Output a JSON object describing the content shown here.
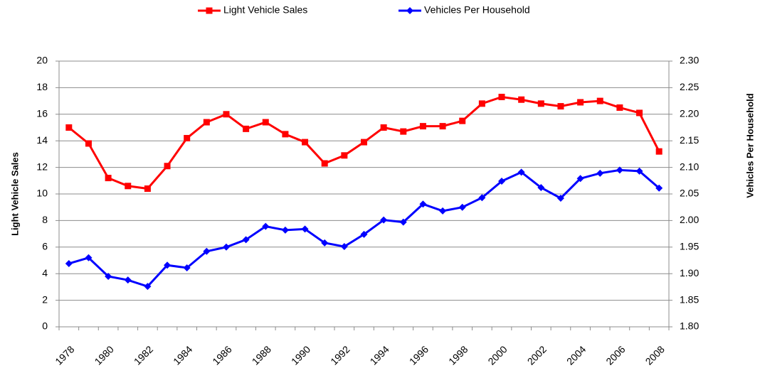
{
  "chart_data": {
    "type": "line",
    "categories": [
      "1978",
      null,
      "1980",
      null,
      "1982",
      null,
      "1984",
      null,
      "1986",
      null,
      "1988",
      null,
      "1990",
      null,
      "1992",
      null,
      "1994",
      null,
      "1996",
      null,
      "1998",
      null,
      "2000",
      null,
      "2002",
      null,
      "2004",
      null,
      "2006",
      null,
      "2008"
    ],
    "y_label": "Light Vehicle Sales",
    "y2_label": "Vehicles Per Household",
    "ylim": [
      0,
      20
    ],
    "yticks": [
      0,
      2,
      4,
      6,
      8,
      10,
      12,
      14,
      16,
      18,
      20
    ],
    "y2lim": [
      1.8,
      2.3
    ],
    "y2ticks": [
      {
        "value": 1.8,
        "label": "1.80"
      },
      1.85,
      {
        "value": 1.9,
        "label": "1.90"
      },
      1.95,
      {
        "value": 2.0,
        "label": "2.00"
      },
      2.05,
      {
        "value": 2.1,
        "label": "2.10"
      },
      2.15,
      {
        "value": 2.2,
        "label": "2.20"
      },
      2.25,
      {
        "value": 2.3,
        "label": "2.30"
      }
    ],
    "grid": true,
    "legend": "top",
    "series": [
      {
        "name": "Light Vehicle Sales",
        "color": "#ff0000",
        "marker": "square",
        "values": [
          15.0,
          13.8,
          11.2,
          10.6,
          10.4,
          12.1,
          14.2,
          15.4,
          16.0,
          14.9,
          15.4,
          14.5,
          13.9,
          12.3,
          12.9,
          13.9,
          15.0,
          14.7,
          15.1,
          15.1,
          15.5,
          16.8,
          17.3,
          17.1,
          16.8,
          16.6,
          16.9,
          17.0,
          16.5,
          16.1,
          13.2
        ]
      },
      {
        "name": "Vehicles Per Household",
        "color": "#0000ff",
        "marker": "diamond",
        "axis": "y2",
        "values": [
          1.919,
          1.93,
          1.895,
          1.888,
          1.876,
          1.916,
          1.911,
          1.942,
          1.95,
          1.964,
          1.989,
          1.982,
          1.984,
          1.958,
          1.951,
          1.974,
          2.001,
          1.997,
          2.031,
          2.018,
          2.025,
          2.043,
          2.074,
          2.091,
          2.062,
          2.042,
          2.079,
          2.089,
          2.095,
          2.093,
          2.061
        ]
      }
    ]
  }
}
